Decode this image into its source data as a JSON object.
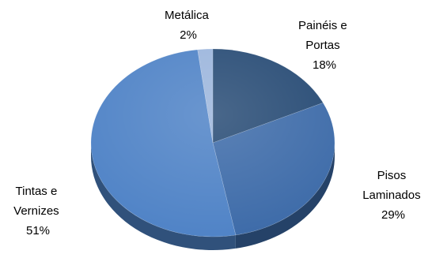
{
  "chart_data": {
    "type": "pie",
    "title": "",
    "legend": "none",
    "slices": [
      {
        "label_lines": [
          "Painéis e",
          "Portas"
        ],
        "percent_label": "18%",
        "value": 18,
        "color": "#264A74"
      },
      {
        "label_lines": [
          "Pisos",
          "Laminados"
        ],
        "percent_label": "29%",
        "value": 29,
        "color": "#3C6AA8"
      },
      {
        "label_lines": [
          "Tintas e",
          "Vernizes"
        ],
        "percent_label": "51%",
        "value": 51,
        "color": "#4E82C6"
      },
      {
        "label_lines": [
          "Metálica"
        ],
        "percent_label": "2%",
        "value": 2,
        "color": "#9BB5DC"
      }
    ]
  }
}
